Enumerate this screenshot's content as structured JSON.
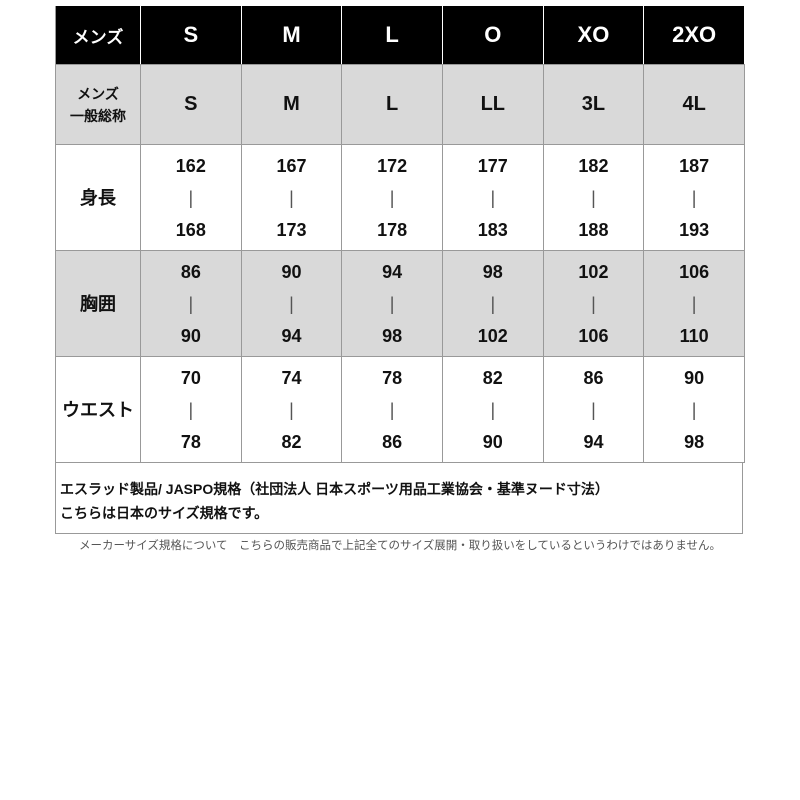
{
  "header": {
    "label": "メンズ",
    "sizes": [
      "S",
      "M",
      "L",
      "O",
      "XO",
      "2XO"
    ]
  },
  "general": {
    "label_line1": "メンズ",
    "label_line2": "一般総称",
    "sizes": [
      "S",
      "M",
      "L",
      "LL",
      "3L",
      "4L"
    ]
  },
  "rows": [
    {
      "label": "身長",
      "ranges": [
        [
          "162",
          "168"
        ],
        [
          "167",
          "173"
        ],
        [
          "172",
          "178"
        ],
        [
          "177",
          "183"
        ],
        [
          "182",
          "188"
        ],
        [
          "187",
          "193"
        ]
      ]
    },
    {
      "label": "胸囲",
      "ranges": [
        [
          "86",
          "90"
        ],
        [
          "90",
          "94"
        ],
        [
          "94",
          "98"
        ],
        [
          "98",
          "102"
        ],
        [
          "102",
          "106"
        ],
        [
          "106",
          "110"
        ]
      ]
    },
    {
      "label": "ウエスト",
      "ranges": [
        [
          "70",
          "78"
        ],
        [
          "74",
          "82"
        ],
        [
          "78",
          "86"
        ],
        [
          "82",
          "90"
        ],
        [
          "86",
          "94"
        ],
        [
          "90",
          "98"
        ]
      ]
    }
  ],
  "separator": "|",
  "note": {
    "line1": "エスラッド製品/ JASPO規格（社団法人 日本スポーツ用品工業協会・基準ヌード寸法）",
    "line2": "こちらは日本のサイズ規格です。"
  },
  "footer": "メーカーサイズ規格について　こちらの販売商品で上記全てのサイズ展開・取り扱いをしているというわけではありません。"
}
